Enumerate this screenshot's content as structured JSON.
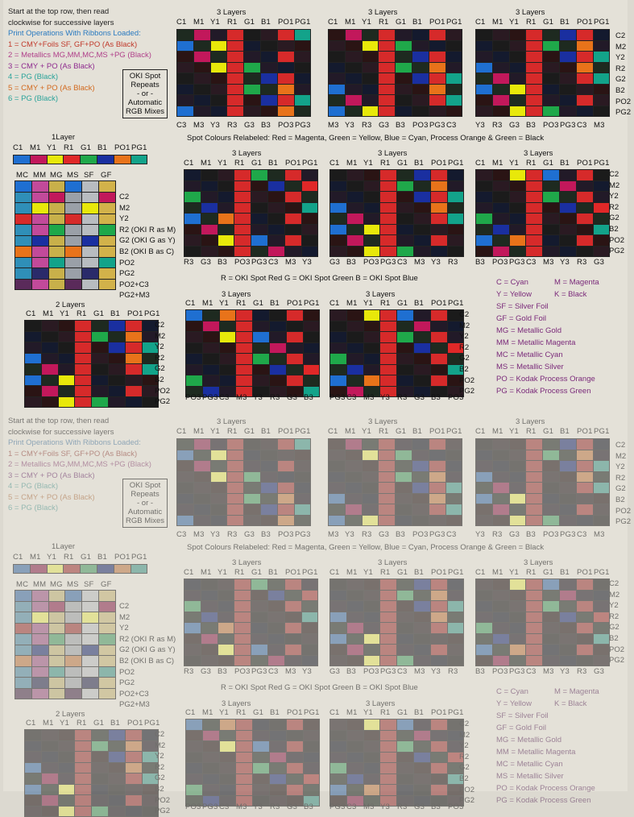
{
  "intro": {
    "line1": "Start at the top row, then read",
    "line2": "clockwise for successive layers",
    "ops_title": "Print Operations With Ribbons Loaded:",
    "ops": [
      {
        "text": "1 = CMY+Foils SF, GF+PO (As Black)",
        "color": "#c0392b"
      },
      {
        "text": "2 = Metallics MG,MM,MC,MS +PG (Black)",
        "color": "#b0408a"
      },
      {
        "text": "3 = CMY + PO (As Black)",
        "color": "#8e2a8e"
      },
      {
        "text": "4 = PG (Black)",
        "color": "#2aa39a"
      },
      {
        "text": "5 = CMY + PO (As Black)",
        "color": "#d2691e"
      },
      {
        "text": "6 = PG (Black)",
        "color": "#2aa39a"
      }
    ],
    "oki_box": [
      "OKI Spot",
      "Repeats",
      "- or -",
      "Automatic",
      "RGB Mixes"
    ]
  },
  "headers": {
    "three_layers": "3 Layers",
    "one_layer": "1Layer",
    "two_layers": "2 Layers",
    "spot_relabeled": "Spot Colours Relabeled:  Red = Magenta,  Green = Yellow,  Blue = Cyan,  Process Orange & Green = Black",
    "rgb_note": "R = OKI Spot Red   G = OKI Spot Green   B = OKI Spot Blue"
  },
  "columns": [
    "C1",
    "M1",
    "Y1",
    "R1",
    "G1",
    "B1",
    "PO1",
    "PG1"
  ],
  "metallic_columns": [
    "MC",
    "MM",
    "MG",
    "MS",
    "SF",
    "GF"
  ],
  "rows_std": [
    "C2",
    "M2",
    "Y2",
    "R2",
    "G2",
    "B2",
    "PO2",
    "PG2"
  ],
  "rows_left": [
    "C2",
    "M2",
    "Y2",
    "R2 (OKI R as M)",
    "G2 (OKI G as Y)",
    "B2 (OKI B as C)",
    "PO2",
    "PG2",
    "PO2+C3",
    "PG2+M3"
  ],
  "bottom_labels": {
    "a": [
      "C3",
      "M3",
      "Y3",
      "R3",
      "G3",
      "B3",
      "PO3",
      "PG3"
    ],
    "b": [
      "M3",
      "Y3",
      "R3",
      "G3",
      "B3",
      "PO3",
      "PG3",
      "C3"
    ],
    "c": [
      "Y3",
      "R3",
      "G3",
      "B3",
      "PO3",
      "PG3",
      "C3",
      "M3"
    ],
    "d": [
      "R3",
      "G3",
      "B3",
      "PO3",
      "PG3",
      "C3",
      "M3",
      "Y3"
    ],
    "e": [
      "G3",
      "B3",
      "PO3",
      "PG3",
      "C3",
      "M3",
      "Y3",
      "R3"
    ],
    "f": [
      "B3",
      "PO3",
      "PG3",
      "C3",
      "M3",
      "Y3",
      "R3",
      "G3"
    ],
    "g": [
      "PO3",
      "PG3",
      "C3",
      "M3",
      "Y3",
      "R3",
      "G3",
      "B3"
    ],
    "h": [
      "PG3",
      "C3",
      "M3",
      "Y3",
      "R3",
      "G3",
      "B3",
      "PO3"
    ]
  },
  "key": [
    "C = Cyan",
    "M = Magenta",
    "Y = Yellow",
    "K = Black",
    "SF = Silver Foil",
    "GF = Gold Foil",
    "MG = Metallic Gold",
    "MM = Metallic Magenta",
    "MC = Metallic Cyan",
    "MS = Metallic Silver",
    "PO = Kodak Process Orange",
    "PG = Kodak Process Green"
  ],
  "colors": {
    "C": "#1f6fd1",
    "M": "#c2185b",
    "Y": "#e8e80a",
    "R": "#e02828",
    "G": "#1fa84a",
    "B": "#1a2fa0",
    "PO": "#e8731a",
    "PG": "#13a38a",
    "K": "#1a1a1a"
  }
}
